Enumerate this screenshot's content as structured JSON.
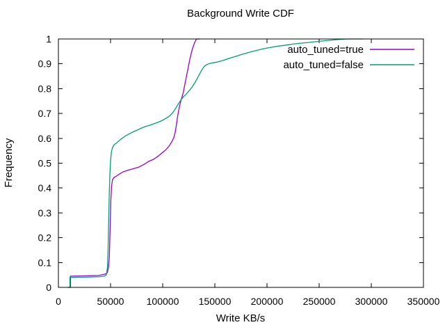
{
  "chart_data": {
    "type": "line",
    "title": "Background Write CDF",
    "xlabel": "Write KB/s",
    "ylabel": "Frequency",
    "xlim": [
      0,
      350000
    ],
    "ylim": [
      0,
      1
    ],
    "grid": false,
    "legend_position": "top-right-inside",
    "axis_color": "#000000",
    "background_color": "#ffffff",
    "xticks": [
      {
        "v": 0,
        "label": "0"
      },
      {
        "v": 50000,
        "label": "50000"
      },
      {
        "v": 100000,
        "label": "100000"
      },
      {
        "v": 150000,
        "label": "150000"
      },
      {
        "v": 200000,
        "label": "200000"
      },
      {
        "v": 250000,
        "label": "250000"
      },
      {
        "v": 300000,
        "label": "300000"
      },
      {
        "v": 350000,
        "label": "350000"
      }
    ],
    "yticks": [
      {
        "v": 0,
        "label": "0"
      },
      {
        "v": 0.1,
        "label": "0.1"
      },
      {
        "v": 0.2,
        "label": "0.2"
      },
      {
        "v": 0.3,
        "label": "0.3"
      },
      {
        "v": 0.4,
        "label": "0.4"
      },
      {
        "v": 0.5,
        "label": "0.5"
      },
      {
        "v": 0.6,
        "label": "0.6"
      },
      {
        "v": 0.7,
        "label": "0.7"
      },
      {
        "v": 0.8,
        "label": "0.8"
      },
      {
        "v": 0.9,
        "label": "0.9"
      },
      {
        "v": 1,
        "label": "1"
      }
    ],
    "series": [
      {
        "name": "auto_tuned=true",
        "color": "#9400d3",
        "points": [
          [
            10000,
            0
          ],
          [
            11500,
            0
          ],
          [
            11500,
            0.045
          ],
          [
            20000,
            0.046
          ],
          [
            30000,
            0.047
          ],
          [
            38000,
            0.048
          ],
          [
            41000,
            0.05
          ],
          [
            43500,
            0.052
          ],
          [
            45500,
            0.055
          ],
          [
            47000,
            0.06
          ],
          [
            48000,
            0.08
          ],
          [
            48800,
            0.12
          ],
          [
            49300,
            0.19
          ],
          [
            49800,
            0.27
          ],
          [
            50300,
            0.35
          ],
          [
            51000,
            0.41
          ],
          [
            52000,
            0.435
          ],
          [
            53500,
            0.443
          ],
          [
            55300,
            0.447
          ],
          [
            58000,
            0.455
          ],
          [
            62000,
            0.465
          ],
          [
            67000,
            0.472
          ],
          [
            72000,
            0.478
          ],
          [
            77000,
            0.484
          ],
          [
            82000,
            0.495
          ],
          [
            87000,
            0.508
          ],
          [
            91000,
            0.515
          ],
          [
            95000,
            0.526
          ],
          [
            99000,
            0.54
          ],
          [
            102500,
            0.552
          ],
          [
            106000,
            0.568
          ],
          [
            108500,
            0.585
          ],
          [
            110700,
            0.604
          ],
          [
            112000,
            0.625
          ],
          [
            113000,
            0.65
          ],
          [
            114000,
            0.68
          ],
          [
            115000,
            0.705
          ],
          [
            116200,
            0.73
          ],
          [
            117800,
            0.757
          ],
          [
            119600,
            0.782
          ],
          [
            121800,
            0.829
          ],
          [
            124000,
            0.875
          ],
          [
            126200,
            0.922
          ],
          [
            128400,
            0.959
          ],
          [
            130700,
            0.987
          ],
          [
            132500,
            1.0
          ],
          [
            136000,
            1.0
          ]
        ]
      },
      {
        "name": "auto_tuned=false",
        "color": "#009e73",
        "points": [
          [
            9000,
            0
          ],
          [
            11000,
            0
          ],
          [
            11000,
            0.04
          ],
          [
            25000,
            0.041
          ],
          [
            40000,
            0.043
          ],
          [
            44000,
            0.045
          ],
          [
            46000,
            0.05
          ],
          [
            47000,
            0.08
          ],
          [
            47600,
            0.15
          ],
          [
            48200,
            0.27
          ],
          [
            48800,
            0.38
          ],
          [
            49400,
            0.46
          ],
          [
            50000,
            0.51
          ],
          [
            50800,
            0.545
          ],
          [
            51800,
            0.562
          ],
          [
            53000,
            0.572
          ],
          [
            54500,
            0.578
          ],
          [
            56000,
            0.582
          ],
          [
            58500,
            0.592
          ],
          [
            61000,
            0.6
          ],
          [
            64000,
            0.609
          ],
          [
            67500,
            0.617
          ],
          [
            71000,
            0.625
          ],
          [
            75000,
            0.632
          ],
          [
            79000,
            0.64
          ],
          [
            83000,
            0.647
          ],
          [
            87000,
            0.652
          ],
          [
            91000,
            0.658
          ],
          [
            95000,
            0.664
          ],
          [
            99000,
            0.671
          ],
          [
            103000,
            0.68
          ],
          [
            106500,
            0.69
          ],
          [
            109500,
            0.703
          ],
          [
            112000,
            0.718
          ],
          [
            114000,
            0.732
          ],
          [
            115500,
            0.742
          ],
          [
            117500,
            0.755
          ],
          [
            120000,
            0.768
          ],
          [
            122500,
            0.778
          ],
          [
            125000,
            0.79
          ],
          [
            128000,
            0.805
          ],
          [
            131000,
            0.825
          ],
          [
            134000,
            0.848
          ],
          [
            137000,
            0.872
          ],
          [
            139500,
            0.888
          ],
          [
            141500,
            0.895
          ],
          [
            144000,
            0.9
          ],
          [
            148000,
            0.904
          ],
          [
            152000,
            0.907
          ],
          [
            156000,
            0.911
          ],
          [
            161000,
            0.918
          ],
          [
            166000,
            0.925
          ],
          [
            171000,
            0.931
          ],
          [
            176000,
            0.938
          ],
          [
            181000,
            0.944
          ],
          [
            186000,
            0.95
          ],
          [
            191000,
            0.955
          ],
          [
            196000,
            0.96
          ],
          [
            202000,
            0.965
          ],
          [
            209000,
            0.97
          ],
          [
            216000,
            0.974
          ],
          [
            224000,
            0.979
          ],
          [
            232000,
            0.983
          ],
          [
            240000,
            0.986
          ],
          [
            248000,
            0.99
          ],
          [
            256000,
            0.993
          ],
          [
            264000,
            0.996
          ],
          [
            272000,
            0.999
          ],
          [
            278000,
            1.0
          ],
          [
            292000,
            1.0
          ]
        ]
      }
    ]
  }
}
